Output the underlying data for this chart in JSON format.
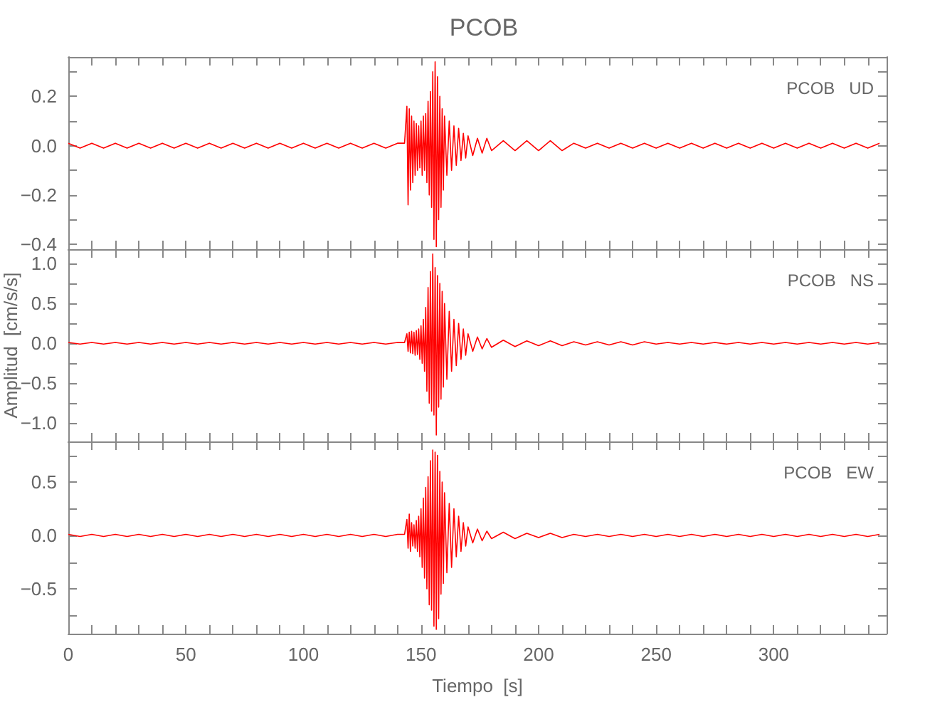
{
  "chart_data": [
    {
      "type": "line",
      "title": "PCOB",
      "annotations": [
        "PCOB   UD"
      ],
      "marker": "none",
      "grid": false,
      "tick_labels": "y",
      "xlim": [
        0,
        348
      ],
      "ylim": [
        -0.42,
        0.36
      ],
      "xticks": [
        0,
        {
          "value": 10,
          "label": null
        },
        {
          "value": 20,
          "label": null
        },
        {
          "value": 30,
          "label": null
        },
        {
          "value": 40,
          "label": null
        },
        50,
        {
          "value": 60,
          "label": null
        },
        {
          "value": 70,
          "label": null
        },
        {
          "value": 80,
          "label": null
        },
        {
          "value": 90,
          "label": null
        },
        100,
        {
          "value": 110,
          "label": null
        },
        {
          "value": 120,
          "label": null
        },
        {
          "value": 130,
          "label": null
        },
        {
          "value": 140,
          "label": null
        },
        150,
        {
          "value": 160,
          "label": null
        },
        {
          "value": 170,
          "label": null
        },
        {
          "value": 180,
          "label": null
        },
        {
          "value": 190,
          "label": null
        },
        200,
        {
          "value": 210,
          "label": null
        },
        {
          "value": 220,
          "label": null
        },
        {
          "value": 230,
          "label": null
        },
        {
          "value": 240,
          "label": null
        },
        250,
        {
          "value": 260,
          "label": null
        },
        {
          "value": 270,
          "label": null
        },
        {
          "value": 280,
          "label": null
        },
        {
          "value": 290,
          "label": null
        },
        300,
        {
          "value": 310,
          "label": null
        },
        {
          "value": 320,
          "label": null
        },
        {
          "value": 330,
          "label": null
        },
        {
          "value": 340,
          "label": null
        }
      ],
      "yticks": [
        {
          "value": -0.4,
          "label": "−0.4"
        },
        {
          "value": -0.3,
          "label": null
        },
        {
          "value": -0.2,
          "label": "−0.2"
        },
        {
          "value": -0.1,
          "label": null
        },
        {
          "value": 0,
          "label": "0.0"
        },
        {
          "value": 0.1,
          "label": null
        },
        {
          "value": 0.2,
          "label": "0.2"
        },
        {
          "value": 0.3,
          "label": null
        }
      ],
      "series": [
        {
          "color": "#ff0000",
          "x": [
            0,
            5,
            10,
            15,
            20,
            25,
            30,
            35,
            40,
            45,
            50,
            55,
            60,
            65,
            70,
            75,
            80,
            85,
            90,
            95,
            100,
            105,
            110,
            115,
            120,
            125,
            130,
            135,
            140,
            143,
            144,
            144.5,
            145,
            145.5,
            146,
            146.5,
            147,
            147.5,
            148,
            148.5,
            149,
            149.5,
            150,
            150.5,
            151,
            151.5,
            152,
            152.5,
            153,
            153.5,
            154,
            154.5,
            155,
            155.5,
            156,
            156.5,
            157,
            157.5,
            158,
            158.5,
            159,
            159.5,
            160,
            161,
            162,
            163,
            164,
            165,
            166,
            167,
            168,
            169,
            170,
            172,
            174,
            176,
            178,
            180,
            185,
            190,
            195,
            200,
            205,
            210,
            215,
            220,
            225,
            230,
            235,
            240,
            245,
            250,
            255,
            260,
            265,
            270,
            275,
            280,
            285,
            290,
            295,
            300,
            305,
            310,
            315,
            320,
            325,
            330,
            335,
            340,
            345
          ],
          "values": [
            0.01,
            -0.01,
            0.01,
            -0.01,
            0.01,
            -0.01,
            0.01,
            -0.01,
            0.01,
            -0.01,
            0.01,
            -0.01,
            0.01,
            -0.01,
            0.01,
            -0.01,
            0.01,
            -0.01,
            0.01,
            -0.01,
            0.01,
            -0.01,
            0.01,
            -0.01,
            0.01,
            -0.01,
            0.01,
            -0.01,
            0.01,
            0.01,
            0.16,
            -0.24,
            0.15,
            -0.18,
            0.12,
            -0.15,
            0.1,
            -0.12,
            0.09,
            -0.1,
            0.08,
            -0.09,
            0.1,
            -0.12,
            0.12,
            -0.1,
            0.13,
            -0.15,
            0.18,
            -0.2,
            0.22,
            -0.25,
            0.3,
            -0.38,
            0.34,
            -0.41,
            0.28,
            -0.3,
            0.2,
            -0.25,
            0.15,
            -0.18,
            0.12,
            -0.12,
            0.1,
            -0.1,
            0.08,
            -0.08,
            0.07,
            -0.06,
            0.05,
            -0.05,
            0.04,
            -0.04,
            0.03,
            -0.03,
            0.03,
            -0.02,
            0.02,
            -0.02,
            0.02,
            -0.02,
            0.02,
            -0.02,
            0.01,
            -0.01,
            0.01,
            -0.01,
            0.01,
            -0.01,
            0.01,
            -0.01,
            0.01,
            -0.01,
            0.01,
            -0.01,
            0.01,
            -0.01,
            0.01,
            -0.01,
            0.01,
            -0.01,
            0.01,
            -0.01,
            0.01,
            -0.01,
            0.01,
            -0.01,
            0.01,
            -0.01,
            0.01
          ]
        }
      ]
    },
    {
      "type": "line",
      "ylabel": "Amplitud  [cm/s/s]",
      "annotations": [
        "PCOB   NS"
      ],
      "marker": "none",
      "grid": false,
      "tick_labels": "y",
      "xlim": [
        0,
        348
      ],
      "ylim": [
        -1.23,
        1.18
      ],
      "xticks": [
        0,
        {
          "value": 10,
          "label": null
        },
        {
          "value": 20,
          "label": null
        },
        {
          "value": 30,
          "label": null
        },
        {
          "value": 40,
          "label": null
        },
        50,
        {
          "value": 60,
          "label": null
        },
        {
          "value": 70,
          "label": null
        },
        {
          "value": 80,
          "label": null
        },
        {
          "value": 90,
          "label": null
        },
        100,
        {
          "value": 110,
          "label": null
        },
        {
          "value": 120,
          "label": null
        },
        {
          "value": 130,
          "label": null
        },
        {
          "value": 140,
          "label": null
        },
        150,
        {
          "value": 160,
          "label": null
        },
        {
          "value": 170,
          "label": null
        },
        {
          "value": 180,
          "label": null
        },
        {
          "value": 190,
          "label": null
        },
        200,
        {
          "value": 210,
          "label": null
        },
        {
          "value": 220,
          "label": null
        },
        {
          "value": 230,
          "label": null
        },
        {
          "value": 240,
          "label": null
        },
        250,
        {
          "value": 260,
          "label": null
        },
        {
          "value": 270,
          "label": null
        },
        {
          "value": 280,
          "label": null
        },
        {
          "value": 290,
          "label": null
        },
        300,
        {
          "value": 310,
          "label": null
        },
        {
          "value": 320,
          "label": null
        },
        {
          "value": 330,
          "label": null
        },
        {
          "value": 340,
          "label": null
        }
      ],
      "yticks": [
        {
          "value": -1,
          "label": "−1.0"
        },
        {
          "value": -0.75,
          "label": null
        },
        {
          "value": -0.5,
          "label": "−0.5"
        },
        {
          "value": -0.25,
          "label": null
        },
        {
          "value": 0,
          "label": "0.0"
        },
        {
          "value": 0.25,
          "label": null
        },
        {
          "value": 0.5,
          "label": "0.5"
        },
        {
          "value": 0.75,
          "label": null
        },
        {
          "value": 1,
          "label": "1.0"
        }
      ],
      "series": [
        {
          "color": "#ff0000",
          "x": [
            0,
            5,
            10,
            15,
            20,
            25,
            30,
            35,
            40,
            45,
            50,
            55,
            60,
            65,
            70,
            75,
            80,
            85,
            90,
            95,
            100,
            105,
            110,
            115,
            120,
            125,
            130,
            135,
            140,
            143,
            144,
            144.5,
            145,
            145.5,
            146,
            146.5,
            147,
            147.5,
            148,
            148.5,
            149,
            149.5,
            150,
            150.5,
            151,
            151.5,
            152,
            152.5,
            153,
            153.5,
            154,
            154.5,
            155,
            155.5,
            156,
            156.5,
            157,
            157.5,
            158,
            158.5,
            159,
            159.5,
            160,
            161,
            162,
            163,
            164,
            165,
            166,
            167,
            168,
            169,
            170,
            172,
            174,
            176,
            178,
            180,
            185,
            190,
            195,
            200,
            205,
            210,
            215,
            220,
            225,
            230,
            235,
            240,
            245,
            250,
            255,
            260,
            265,
            270,
            275,
            280,
            285,
            290,
            295,
            300,
            305,
            310,
            315,
            320,
            325,
            330,
            335,
            340,
            345
          ],
          "values": [
            0.01,
            -0.01,
            0.01,
            -0.01,
            0.01,
            -0.01,
            0.01,
            -0.01,
            0.01,
            -0.01,
            0.01,
            -0.01,
            0.01,
            -0.01,
            0.01,
            -0.01,
            0.01,
            -0.01,
            0.01,
            -0.01,
            0.01,
            -0.01,
            0.01,
            -0.01,
            0.01,
            -0.01,
            0.01,
            -0.01,
            0.01,
            0.01,
            0.12,
            -0.1,
            0.14,
            -0.12,
            0.15,
            -0.13,
            0.14,
            -0.15,
            0.16,
            -0.14,
            0.18,
            -0.2,
            0.22,
            -0.25,
            0.3,
            -0.35,
            0.45,
            -0.6,
            0.7,
            -0.75,
            0.9,
            -0.85,
            1.12,
            -0.9,
            0.95,
            -1.15,
            0.85,
            -0.8,
            0.75,
            -0.7,
            0.65,
            -0.55,
            0.5,
            -0.45,
            0.4,
            -0.35,
            0.3,
            -0.28,
            0.25,
            -0.2,
            0.18,
            -0.15,
            0.12,
            -0.1,
            0.08,
            -0.07,
            0.06,
            -0.05,
            0.04,
            -0.04,
            0.03,
            -0.03,
            0.03,
            -0.03,
            0.02,
            -0.02,
            0.02,
            -0.02,
            0.02,
            -0.02,
            0.02,
            -0.01,
            0.01,
            -0.01,
            0.01,
            -0.01,
            0.01,
            -0.01,
            0.01,
            -0.01,
            0.01,
            -0.01,
            0.01,
            -0.01,
            0.01,
            -0.01,
            0.01,
            -0.01,
            0.01,
            -0.01,
            0.01
          ]
        }
      ]
    },
    {
      "type": "line",
      "xlabel": "Tiempo  [s]",
      "annotations": [
        "PCOB   EW"
      ],
      "marker": "none",
      "grid": false,
      "xlim": [
        0,
        348
      ],
      "ylim": [
        -0.92,
        0.88
      ],
      "xticks": [
        0,
        {
          "value": 10,
          "label": null
        },
        {
          "value": 20,
          "label": null
        },
        {
          "value": 30,
          "label": null
        },
        {
          "value": 40,
          "label": null
        },
        50,
        {
          "value": 60,
          "label": null
        },
        {
          "value": 70,
          "label": null
        },
        {
          "value": 80,
          "label": null
        },
        {
          "value": 90,
          "label": null
        },
        100,
        {
          "value": 110,
          "label": null
        },
        {
          "value": 120,
          "label": null
        },
        {
          "value": 130,
          "label": null
        },
        {
          "value": 140,
          "label": null
        },
        150,
        {
          "value": 160,
          "label": null
        },
        {
          "value": 170,
          "label": null
        },
        {
          "value": 180,
          "label": null
        },
        {
          "value": 190,
          "label": null
        },
        200,
        {
          "value": 210,
          "label": null
        },
        {
          "value": 220,
          "label": null
        },
        {
          "value": 230,
          "label": null
        },
        {
          "value": 240,
          "label": null
        },
        250,
        {
          "value": 260,
          "label": null
        },
        {
          "value": 270,
          "label": null
        },
        {
          "value": 280,
          "label": null
        },
        {
          "value": 290,
          "label": null
        },
        300,
        {
          "value": 310,
          "label": null
        },
        {
          "value": 320,
          "label": null
        },
        {
          "value": 330,
          "label": null
        },
        {
          "value": 340,
          "label": null
        }
      ],
      "yticks": [
        {
          "value": -0.75,
          "label": null
        },
        {
          "value": -0.5,
          "label": "−0.5"
        },
        {
          "value": -0.25,
          "label": null
        },
        {
          "value": 0,
          "label": "0.0"
        },
        {
          "value": 0.25,
          "label": null
        },
        {
          "value": 0.5,
          "label": "0.5"
        },
        {
          "value": 0.75,
          "label": null
        }
      ],
      "series": [
        {
          "color": "#ff0000",
          "x": [
            0,
            5,
            10,
            15,
            20,
            25,
            30,
            35,
            40,
            45,
            50,
            55,
            60,
            65,
            70,
            75,
            80,
            85,
            90,
            95,
            100,
            105,
            110,
            115,
            120,
            125,
            130,
            135,
            140,
            143,
            144,
            144.5,
            145,
            145.5,
            146,
            146.5,
            147,
            147.5,
            148,
            148.5,
            149,
            149.5,
            150,
            150.5,
            151,
            151.5,
            152,
            152.5,
            153,
            153.5,
            154,
            154.5,
            155,
            155.5,
            156,
            156.5,
            157,
            157.5,
            158,
            158.5,
            159,
            159.5,
            160,
            161,
            162,
            163,
            164,
            165,
            166,
            167,
            168,
            169,
            170,
            172,
            174,
            176,
            178,
            180,
            185,
            190,
            195,
            200,
            205,
            210,
            215,
            220,
            225,
            230,
            235,
            240,
            245,
            250,
            255,
            260,
            265,
            270,
            275,
            280,
            285,
            290,
            295,
            300,
            305,
            310,
            315,
            320,
            325,
            330,
            335,
            340,
            345
          ],
          "values": [
            0.01,
            -0.01,
            0.01,
            -0.01,
            0.01,
            -0.01,
            0.01,
            -0.01,
            0.01,
            -0.01,
            0.01,
            -0.01,
            0.01,
            -0.01,
            0.01,
            -0.01,
            0.01,
            -0.01,
            0.01,
            -0.01,
            0.01,
            -0.01,
            0.01,
            -0.01,
            0.01,
            -0.01,
            0.01,
            -0.01,
            0.01,
            0.01,
            0.15,
            -0.12,
            0.2,
            -0.15,
            0.12,
            -0.1,
            0.1,
            -0.12,
            0.14,
            -0.15,
            0.18,
            -0.2,
            0.25,
            -0.3,
            0.35,
            -0.4,
            0.45,
            -0.5,
            0.55,
            -0.65,
            0.7,
            -0.7,
            0.8,
            -0.85,
            0.78,
            -0.88,
            0.75,
            -0.78,
            0.6,
            -0.55,
            0.5,
            -0.45,
            0.4,
            -0.35,
            0.3,
            -0.3,
            0.25,
            -0.2,
            0.18,
            -0.15,
            0.12,
            -0.1,
            0.08,
            -0.07,
            0.06,
            -0.05,
            0.04,
            -0.03,
            0.03,
            -0.03,
            0.02,
            -0.02,
            0.02,
            -0.02,
            0.01,
            -0.01,
            0.01,
            -0.01,
            0.01,
            -0.01,
            0.01,
            -0.01,
            0.01,
            -0.01,
            0.01,
            -0.01,
            0.01,
            -0.01,
            0.01,
            -0.01,
            0.01,
            -0.01,
            0.01,
            -0.01,
            0.01,
            -0.01,
            0.01,
            -0.01,
            0.01,
            -0.01,
            0.01
          ]
        }
      ]
    }
  ]
}
